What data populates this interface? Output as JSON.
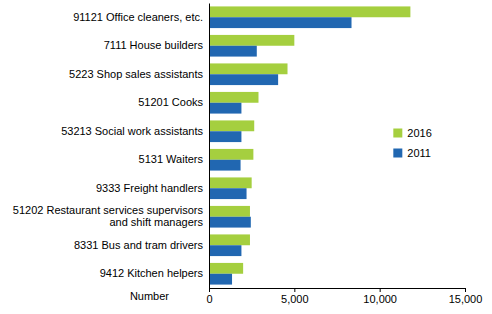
{
  "chart_data": {
    "type": "bar",
    "orientation": "horizontal",
    "categories": [
      "91121 Office cleaners, etc.",
      "7111 House builders",
      "5223 Shop sales assistants",
      "51201 Cooks",
      "53213 Social work assistants",
      "5131 Waiters",
      "9333 Freight handlers",
      "51202 Restaurant services supervisors and shift managers",
      "8331 Bus and tram drivers",
      "9412 Kitchen helpers"
    ],
    "series": [
      {
        "name": "2016",
        "color": "#a5cf3f",
        "values": [
          11800,
          5000,
          4600,
          2900,
          2650,
          2600,
          2500,
          2400,
          2400,
          2000
        ]
      },
      {
        "name": "2011",
        "color": "#2167b1",
        "values": [
          8350,
          2800,
          4050,
          1900,
          1900,
          1850,
          2200,
          2450,
          1900,
          1350
        ]
      }
    ],
    "xlabel": "Number",
    "xlim": [
      0,
      15000
    ],
    "xticks": [
      0,
      {
        "value": 5000,
        "label": "5,000"
      },
      {
        "value": 10000,
        "label": "10,000"
      },
      {
        "value": 15000,
        "label": "15,000"
      }
    ],
    "grid": false,
    "legend": "right"
  }
}
